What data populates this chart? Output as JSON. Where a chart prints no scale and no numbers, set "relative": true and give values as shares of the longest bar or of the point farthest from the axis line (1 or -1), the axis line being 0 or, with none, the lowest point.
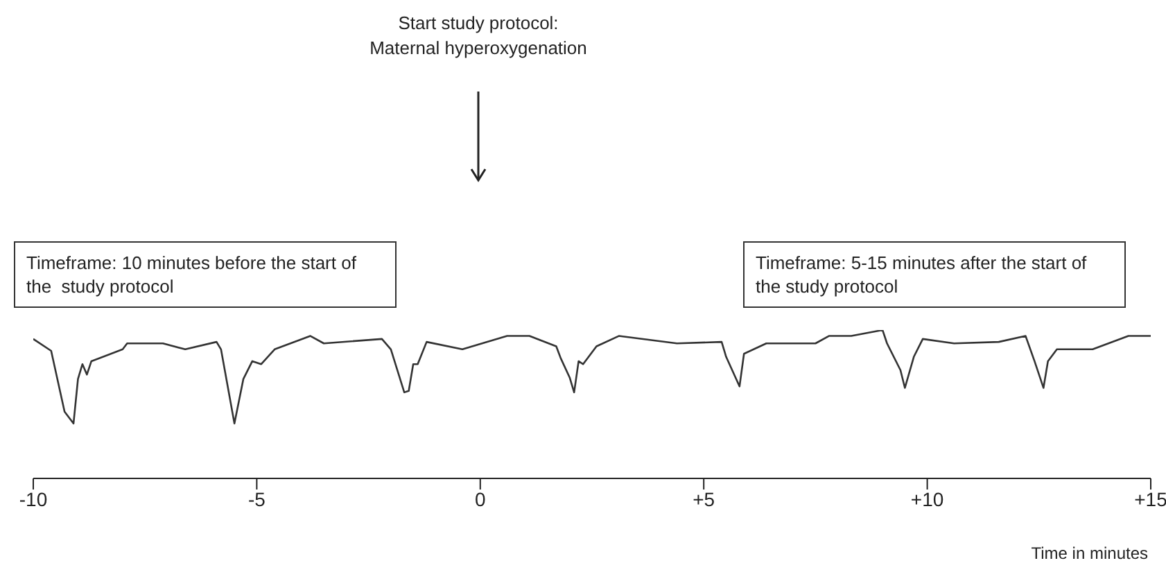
{
  "chart_data": {
    "type": "line",
    "relative": true,
    "xlabel": "Time in minutes",
    "xlim": [
      -10,
      15
    ],
    "xticks": [
      -10,
      -5,
      0,
      {
        "value": 5,
        "label": "+5"
      },
      {
        "value": 10,
        "label": "+10"
      },
      {
        "value": 15,
        "label": "+15"
      }
    ],
    "annotations": [
      "Start study protocol:\nMaternal hyperoxygenation",
      "Timeframe: 10 minutes before the start of\nthe  study protocol",
      "Timeframe: 5-15 minutes after the start of\nthe study protocol"
    ],
    "series": [
      {
        "color": "#333333",
        "x": [
          -10.0,
          -9.6,
          -9.3,
          -9.1,
          -9.0,
          -8.9,
          -8.8,
          -8.7,
          -8.0,
          -7.9,
          -7.1,
          -6.6,
          -5.9,
          -5.8,
          -5.5,
          -5.3,
          -5.1,
          -4.9,
          -4.6,
          -3.8,
          -3.5,
          -2.2,
          -2.0,
          -1.7,
          -1.6,
          -1.5,
          -1.4,
          -1.2,
          -0.4,
          0.6,
          1.1,
          1.7,
          1.8,
          2.0,
          2.1,
          2.2,
          2.3,
          2.6,
          3.1,
          4.4,
          5.4,
          5.5,
          5.8,
          5.9,
          6.4,
          7.5,
          7.8,
          8.3,
          9.0,
          9.1,
          9.4,
          9.5,
          9.7,
          9.9,
          10.6,
          11.6,
          12.2,
          12.4,
          12.6,
          12.7,
          12.9,
          13.7,
          14.5,
          14.8,
          15.0
        ],
        "values": [
          0.94,
          0.86,
          0.45,
          0.37,
          0.67,
          0.77,
          0.7,
          0.79,
          0.87,
          0.91,
          0.91,
          0.87,
          0.92,
          0.87,
          0.37,
          0.67,
          0.79,
          0.77,
          0.87,
          0.96,
          0.91,
          0.94,
          0.87,
          0.58,
          0.59,
          0.77,
          0.77,
          0.92,
          0.87,
          0.96,
          0.96,
          0.89,
          0.81,
          0.68,
          0.58,
          0.79,
          0.77,
          0.89,
          0.96,
          0.91,
          0.92,
          0.82,
          0.62,
          0.84,
          0.91,
          0.91,
          0.96,
          0.96,
          1.0,
          0.91,
          0.73,
          0.61,
          0.82,
          0.94,
          0.91,
          0.92,
          0.96,
          0.79,
          0.61,
          0.79,
          0.87,
          0.87,
          0.96,
          0.96,
          0.96
        ]
      }
    ]
  }
}
